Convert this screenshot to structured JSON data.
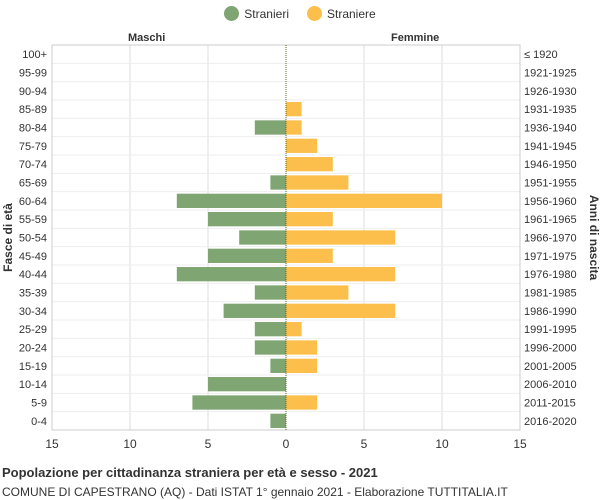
{
  "legend": {
    "items": [
      {
        "label": "Stranieri",
        "color": "#7fa572"
      },
      {
        "label": "Straniere",
        "color": "#fdbf4c"
      }
    ]
  },
  "labels": {
    "left_side": "Maschi",
    "right_side": "Femmine",
    "y_left": "Fasce di età",
    "y_right": "Anni di nascita"
  },
  "footer": {
    "title": "Popolazione per cittadinanza straniera per età e sesso - 2021",
    "subtitle": "COMUNE DI CAPESTRANO (AQ) - Dati ISTAT 1° gennaio 2021 - Elaborazione TUTTITALIA.IT"
  },
  "chart_data": {
    "type": "bar",
    "orientation": "horizontal-population-pyramid",
    "categories": [
      "100+",
      "95-99",
      "90-94",
      "85-89",
      "80-84",
      "75-79",
      "70-74",
      "65-69",
      "60-64",
      "55-59",
      "50-54",
      "45-49",
      "40-44",
      "35-39",
      "30-34",
      "25-29",
      "20-24",
      "15-19",
      "10-14",
      "5-9",
      "0-4"
    ],
    "birth_years": [
      "≤ 1920",
      "1921-1925",
      "1926-1930",
      "1931-1935",
      "1936-1940",
      "1941-1945",
      "1946-1950",
      "1951-1955",
      "1956-1960",
      "1961-1965",
      "1966-1970",
      "1971-1975",
      "1976-1980",
      "1981-1985",
      "1986-1990",
      "1991-1995",
      "1996-2000",
      "2001-2005",
      "2006-2010",
      "2011-2015",
      "2016-2020"
    ],
    "series": [
      {
        "name": "Stranieri",
        "color": "#7fa572",
        "values": [
          0,
          0,
          0,
          0,
          2,
          0,
          0,
          1,
          7,
          5,
          3,
          5,
          7,
          2,
          4,
          2,
          2,
          1,
          5,
          6,
          1
        ]
      },
      {
        "name": "Straniere",
        "color": "#fdbf4c",
        "values": [
          0,
          0,
          0,
          1,
          1,
          2,
          3,
          4,
          10,
          3,
          7,
          3,
          7,
          4,
          7,
          1,
          2,
          2,
          0,
          2,
          0
        ]
      }
    ],
    "x_ticks": [
      "15",
      "10",
      "5",
      "0",
      "5",
      "10",
      "15"
    ],
    "xlim": [
      -15,
      15
    ],
    "grid": true
  }
}
